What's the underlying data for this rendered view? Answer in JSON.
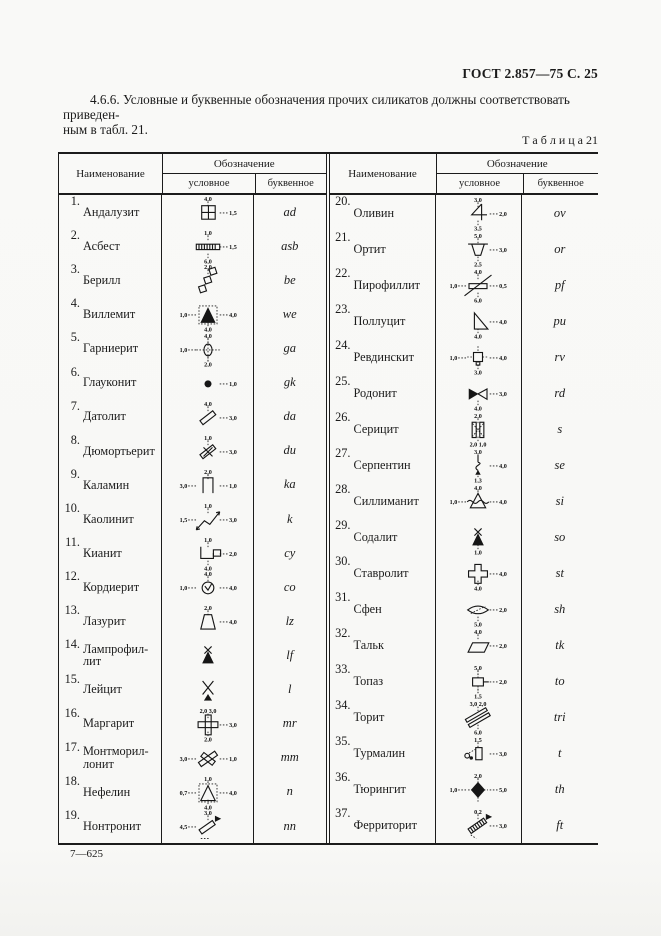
{
  "page": {
    "header": "ГОСТ 2.857—75 С. 25",
    "para_line1": "4.6.6. Условные и буквенные обозначения прочих силикатов должны соответствовать приведен-",
    "para_line2": "ным в табл. 21.",
    "caption": "Т а б л и ц а 21",
    "footer": "7—625"
  },
  "table": {
    "headers": {
      "name": "Наименование",
      "designation": "Обозначение",
      "conventional": "условное",
      "letter": "буквенное"
    },
    "left_rows": [
      {
        "num": "1",
        "name": "Андалузит",
        "code": "ad",
        "symbol": {
          "type": "grid2x2",
          "labels": {
            "top": "4,0",
            "right": "1,5"
          }
        }
      },
      {
        "num": "2",
        "name": "Асбест",
        "code": "asb",
        "symbol": {
          "type": "hatchbar",
          "labels": {
            "top": "1,0",
            "right": "1,5",
            "bottom": "6,0"
          }
        }
      },
      {
        "num": "3",
        "name": "Берилл",
        "code": "be",
        "symbol": {
          "type": "diagsquares",
          "labels": {
            "top": "2,0"
          }
        }
      },
      {
        "num": "4",
        "name": "Виллемит",
        "code": "we",
        "symbol": {
          "type": "tri-filled-box",
          "labels": {
            "left": "1,0",
            "right": "4,0",
            "bottom": "4,0"
          }
        }
      },
      {
        "num": "5",
        "name": "Гарниерит",
        "code": "ga",
        "symbol": {
          "type": "ellipse-cross",
          "labels": {
            "top": "4,0",
            "left": "1,0",
            "bottom": "2,0"
          }
        }
      },
      {
        "num": "6",
        "name": "Глауконит",
        "code": "gk",
        "symbol": {
          "type": "dot",
          "labels": {
            "right": "1,0"
          }
        }
      },
      {
        "num": "7",
        "name": "Датолит",
        "code": "da",
        "symbol": {
          "type": "diagbar",
          "labels": {
            "top": "4,0",
            "right": "3,0"
          }
        }
      },
      {
        "num": "8",
        "name": "Дюмортьерит",
        "code": "du",
        "symbol": {
          "type": "diagbar-x",
          "labels": {
            "top": "1,0",
            "right": "3,0"
          }
        }
      },
      {
        "num": "9",
        "name": "Каламин",
        "code": "ka",
        "symbol": {
          "type": "u-rect",
          "labels": {
            "top": "2,0",
            "left": "3,0",
            "right": "1,0"
          }
        }
      },
      {
        "num": "10",
        "name": "Каолинит",
        "code": "k",
        "symbol": {
          "type": "zigzag",
          "labels": {
            "top": "1,0",
            "right": "3,0",
            "left": "1,5"
          }
        }
      },
      {
        "num": "11",
        "name": "Кианит",
        "code": "cy",
        "symbol": {
          "type": "ibeam",
          "labels": {
            "top": "1,0",
            "right": "2,0",
            "bottom": "4,0"
          }
        }
      },
      {
        "num": "12",
        "name": "Кордиерит",
        "code": "co",
        "symbol": {
          "type": "circle-v",
          "labels": {
            "top": "4,0",
            "left": "1,0",
            "right": "4,0"
          }
        }
      },
      {
        "num": "13",
        "name": "Лазурит",
        "code": "lz",
        "symbol": {
          "type": "trap-up",
          "labels": {
            "top": "2,0",
            "right": "4,0"
          }
        }
      },
      {
        "num": "14",
        "name": "Лампрофил-лит",
        "code": "lf",
        "symbol": {
          "type": "tri-x-filled",
          "labels": {}
        }
      },
      {
        "num": "15",
        "name": "Лейцит",
        "code": "l",
        "symbol": {
          "type": "x-tri",
          "labels": {}
        }
      },
      {
        "num": "16",
        "name": "Маргарит",
        "code": "mr",
        "symbol": {
          "type": "cross-bars",
          "labels": {
            "top": "2,0 3,0",
            "right": "3,0",
            "bottom": "2,0"
          }
        }
      },
      {
        "num": "17",
        "name": "Монтморил-лонит",
        "code": "mm",
        "symbol": {
          "type": "diag-cross-bars",
          "labels": {
            "left": "3,0",
            "right": "1,0"
          }
        }
      },
      {
        "num": "18",
        "name": "Нефелин",
        "code": "n",
        "symbol": {
          "type": "tri-outline-box",
          "labels": {
            "top": "1,0",
            "left": "0,7",
            "right": "4,0",
            "bottom": "4,0"
          }
        }
      },
      {
        "num": "19",
        "name": "Нонтронит",
        "code": "nn",
        "symbol": {
          "type": "diag-flag",
          "labels": {
            "top": "3,0",
            "left": "4,5"
          }
        }
      }
    ],
    "right_rows": [
      {
        "num": "20",
        "name": "Оливин",
        "code": "ov",
        "symbol": {
          "type": "l-shape",
          "labels": {
            "top": "3,0",
            "right": "2,0",
            "bottom": "3,5"
          }
        }
      },
      {
        "num": "21",
        "name": "Ортит",
        "code": "or",
        "symbol": {
          "type": "trap-down",
          "labels": {
            "top": "5,0",
            "right": "3,0",
            "bottom": "2,5"
          }
        }
      },
      {
        "num": "22",
        "name": "Пирофиллит",
        "code": "pf",
        "symbol": {
          "type": "bar-slash",
          "labels": {
            "top": "4,0",
            "left": "1,0",
            "right": "0,5",
            "bottom": "6,0"
          }
        }
      },
      {
        "num": "23",
        "name": "Поллуцит",
        "code": "pu",
        "symbol": {
          "type": "right-tri",
          "labels": {
            "right": "4,0",
            "bottom": "4,0"
          }
        }
      },
      {
        "num": "24",
        "name": "Ревдинскит",
        "code": "rv",
        "symbol": {
          "type": "rect-cross",
          "labels": {
            "left": "1,0",
            "right": "4,0",
            "bottom": "3,0"
          }
        }
      },
      {
        "num": "25",
        "name": "Родонит",
        "code": "rd",
        "symbol": {
          "type": "bowtie",
          "labels": {
            "right": "3,0",
            "bottom": "4,0"
          }
        }
      },
      {
        "num": "26",
        "name": "Серицит",
        "code": "s",
        "symbol": {
          "type": "double-bar-x",
          "labels": {
            "top": "2,0",
            "bottom": "2,0 1,0"
          }
        }
      },
      {
        "num": "27",
        "name": "Серпентин",
        "code": "se",
        "symbol": {
          "type": "s-curve",
          "labels": {
            "top": "3,0",
            "right": "4,0",
            "bottom": "1,3"
          }
        }
      },
      {
        "num": "28",
        "name": "Силлиманит",
        "code": "si",
        "symbol": {
          "type": "tri-wave",
          "labels": {
            "top": "4,0",
            "left": "1,0",
            "right": "4,0"
          }
        }
      },
      {
        "num": "29",
        "name": "Содалит",
        "code": "so",
        "symbol": {
          "type": "tri-x-filled",
          "labels": {
            "bottom": "1,0"
          }
        }
      },
      {
        "num": "30",
        "name": "Ставролит",
        "code": "st",
        "symbol": {
          "type": "plus",
          "labels": {
            "right": "4,0",
            "bottom": "4,0"
          }
        }
      },
      {
        "num": "31",
        "name": "Сфен",
        "code": "sh",
        "symbol": {
          "type": "lens",
          "labels": {
            "right": "2,0",
            "bottom": "5,0"
          }
        }
      },
      {
        "num": "32",
        "name": "Тальк",
        "code": "tk",
        "symbol": {
          "type": "parallelogram",
          "labels": {
            "top": "4,0",
            "right": "2,0"
          }
        }
      },
      {
        "num": "33",
        "name": "Топаз",
        "code": "to",
        "symbol": {
          "type": "rect-flag",
          "labels": {
            "top": "5,0",
            "right": "2,0",
            "bottom": "1,5"
          }
        }
      },
      {
        "num": "34",
        "name": "Торит",
        "code": "tri",
        "symbol": {
          "type": "double-diag",
          "labels": {
            "top": "3,0 2,0",
            "bottom": "6,0"
          }
        }
      },
      {
        "num": "35",
        "name": "Турмалин",
        "code": "t",
        "symbol": {
          "type": "rect-dots",
          "labels": {
            "top": "1,5",
            "right": "3,0"
          }
        }
      },
      {
        "num": "36",
        "name": "Тюрингит",
        "code": "th",
        "symbol": {
          "type": "diamond-cross",
          "labels": {
            "top": "2,0",
            "left": "1,0",
            "right": "5,0"
          }
        }
      },
      {
        "num": "37",
        "name": "Ферриторит",
        "code": "ft",
        "symbol": {
          "type": "diag-hatch-flag",
          "labels": {
            "top": "0,2",
            "right": "3,0"
          }
        }
      }
    ]
  }
}
